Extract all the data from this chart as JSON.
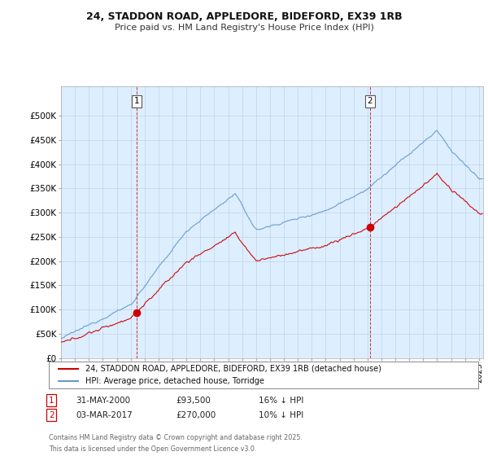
{
  "title_line1": "24, STADDON ROAD, APPLEDORE, BIDEFORD, EX39 1RB",
  "title_line2": "Price paid vs. HM Land Registry's House Price Index (HPI)",
  "red_label": "24, STADDON ROAD, APPLEDORE, BIDEFORD, EX39 1RB (detached house)",
  "blue_label": "HPI: Average price, detached house, Torridge",
  "annotation1_date": "31-MAY-2000",
  "annotation1_price": "£93,500",
  "annotation1_hpi": "16% ↓ HPI",
  "annotation2_date": "03-MAR-2017",
  "annotation2_price": "£270,000",
  "annotation2_hpi": "10% ↓ HPI",
  "footer": "Contains HM Land Registry data © Crown copyright and database right 2025.\nThis data is licensed under the Open Government Licence v3.0.",
  "red_color": "#cc0000",
  "blue_color": "#6699cc",
  "chart_bg": "#ddeeff",
  "sale1_x": 2000.42,
  "sale1_y": 93500,
  "sale2_x": 2017.17,
  "sale2_y": 270000,
  "vline1_x": 2000.42,
  "vline2_x": 2017.17,
  "ylim": [
    0,
    560000
  ],
  "xlim_start": 1995,
  "xlim_end": 2025.3
}
